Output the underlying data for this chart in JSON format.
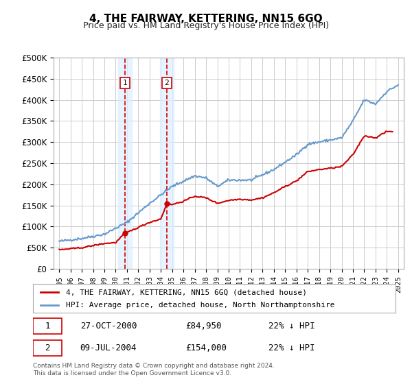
{
  "title": "4, THE FAIRWAY, KETTERING, NN15 6GQ",
  "subtitle": "Price paid vs. HM Land Registry's House Price Index (HPI)",
  "legend_line1": "4, THE FAIRWAY, KETTERING, NN15 6GQ (detached house)",
  "legend_line2": "HPI: Average price, detached house, North Northamptonshire",
  "transaction1_label": "1",
  "transaction1_date": "27-OCT-2000",
  "transaction1_price": "£84,950",
  "transaction1_hpi": "22% ↓ HPI",
  "transaction1_year": 2000.82,
  "transaction1_value": 84950,
  "transaction2_label": "2",
  "transaction2_date": "09-JUL-2004",
  "transaction2_price": "£154,000",
  "transaction2_hpi": "22% ↓ HPI",
  "transaction2_year": 2004.52,
  "transaction2_value": 154000,
  "footer_line1": "Contains HM Land Registry data © Crown copyright and database right 2024.",
  "footer_line2": "This data is licensed under the Open Government Licence v3.0.",
  "ylim": [
    0,
    500000
  ],
  "yticks": [
    0,
    50000,
    100000,
    150000,
    200000,
    250000,
    300000,
    350000,
    400000,
    450000,
    500000
  ],
  "ytick_labels": [
    "£0",
    "£50K",
    "£100K",
    "£150K",
    "£200K",
    "£250K",
    "£300K",
    "£350K",
    "£400K",
    "£450K",
    "£500K"
  ],
  "xlim_start": 1994.5,
  "xlim_end": 2025.5,
  "red_color": "#cc0000",
  "blue_color": "#6699cc",
  "shade_color": "#ddeeff",
  "hatch_color": "#dddddd",
  "grid_color": "#cccccc",
  "background_color": "#ffffff",
  "box_color_red": "#cc0000",
  "box_color_gray": "#888888"
}
